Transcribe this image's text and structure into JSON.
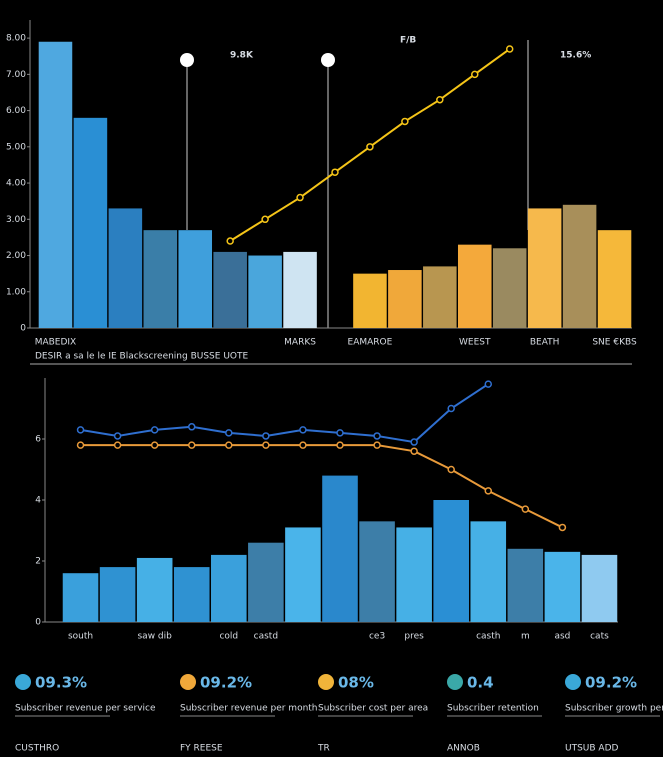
{
  "chart_data": [
    {
      "type": "bar",
      "categories": [
        "MABEDIX",
        null,
        null,
        null,
        null,
        null,
        null,
        "MARKS",
        null,
        "EAMAROE",
        null,
        null,
        "WEEST",
        null,
        "BEATH",
        null,
        "SNE €KBS"
      ],
      "values": [
        7.9,
        5.8,
        3.3,
        2.7,
        2.7,
        2.1,
        2.0,
        2.1,
        null,
        1.5,
        1.6,
        1.7,
        2.3,
        2.2,
        3.3,
        3.4,
        2.7
      ],
      "colors": [
        "#4fa8e0",
        "#2a8fd4",
        "#2b7fc0",
        "#3a7ea8",
        "#3f9fdc",
        "#3a6f98",
        "#4aa6dc",
        "#cfe4f2",
        null,
        "#f2b531",
        "#f0a83a",
        "#b89650",
        "#f4a93b",
        "#9a8a60",
        "#f6b94c",
        "#a88f5a",
        "#f5b83a"
      ],
      "line_values": [
        null,
        null,
        null,
        null,
        null,
        2.4,
        3.0,
        3.6,
        4.3,
        5.0,
        5.7,
        6.3,
        7.0,
        7.7,
        null,
        null,
        null
      ],
      "line_color": "#f5c518",
      "ylim": [
        0,
        8.5
      ],
      "yticks": [
        0,
        {
          "value": 1,
          "label": "1.00"
        },
        {
          "value": 2,
          "label": "2.00"
        },
        {
          "value": 3,
          "label": "3.00"
        },
        {
          "value": 4,
          "label": "4.00"
        },
        {
          "value": 5,
          "label": "5.00"
        },
        {
          "value": 6,
          "label": "6.00"
        },
        {
          "value": 7,
          "label": "7.00"
        },
        {
          "value": 8,
          "label": "8.00"
        }
      ],
      "annotations": [
        "9.8K",
        "F/B",
        "15.6%"
      ],
      "subtitle": "DESIR a sa le le IE Blackscreening BUSSE UOTE"
    },
    {
      "type": "bar",
      "categories": [
        "south",
        null,
        "saw dib",
        null,
        "cold",
        "castd",
        null,
        null,
        "ce3",
        "pres",
        null,
        "casth",
        "m",
        "asd",
        "cats"
      ],
      "values": [
        1.6,
        1.8,
        2.1,
        1.8,
        2.2,
        2.6,
        3.1,
        4.8,
        3.3,
        3.1,
        4.0,
        3.3,
        2.4,
        2.3,
        2.2
      ],
      "colors": [
        "#3aa0dc",
        "#2f92d2",
        "#46b0e6",
        "#2f92d2",
        "#3aa0dc",
        "#3d7ea8",
        "#4ab4ea",
        "#2a88cc",
        "#3d7ea8",
        "#46b0e6",
        "#2a8fd4",
        "#46b0e6",
        "#3d7ea8",
        "#4ab4ea",
        "#8fcaf0"
      ],
      "line_values": [
        6.3,
        6.1,
        6.3,
        6.4,
        6.2,
        6.1,
        6.3,
        6.2,
        6.1,
        5.9,
        7.0,
        7.8,
        null,
        null,
        null
      ],
      "line_color": "#2f6fd0",
      "line2_values": [
        5.8,
        5.8,
        5.8,
        5.8,
        5.8,
        5.8,
        5.8,
        5.8,
        5.8,
        5.6,
        5.0,
        4.3,
        3.7,
        3.1,
        null
      ],
      "line2_color": "#e89a3a",
      "ylim": [
        0,
        8
      ],
      "yticks": [
        0,
        2,
        4,
        6
      ]
    }
  ],
  "kpis": [
    {
      "value": "09.3%",
      "color": "#3aa8d8",
      "line1": "Subscriber revenue per service",
      "line2": "CUSTHRO"
    },
    {
      "value": "09.2%",
      "color": "#f0a83a",
      "line1": "Subscriber revenue per month",
      "line2": "FY REESE"
    },
    {
      "value": "08%",
      "color": "#f0b43a",
      "line1": "Subscriber cost per area",
      "line2": "TR"
    },
    {
      "value": "0.4",
      "color": "#3aa8a8",
      "line1": "Subscriber retention",
      "line2": "ANNOB"
    },
    {
      "value": "09.2%",
      "color": "#3aa8d8",
      "line1": "Subscriber growth per rate",
      "line2": "UTSUB ADD"
    }
  ]
}
